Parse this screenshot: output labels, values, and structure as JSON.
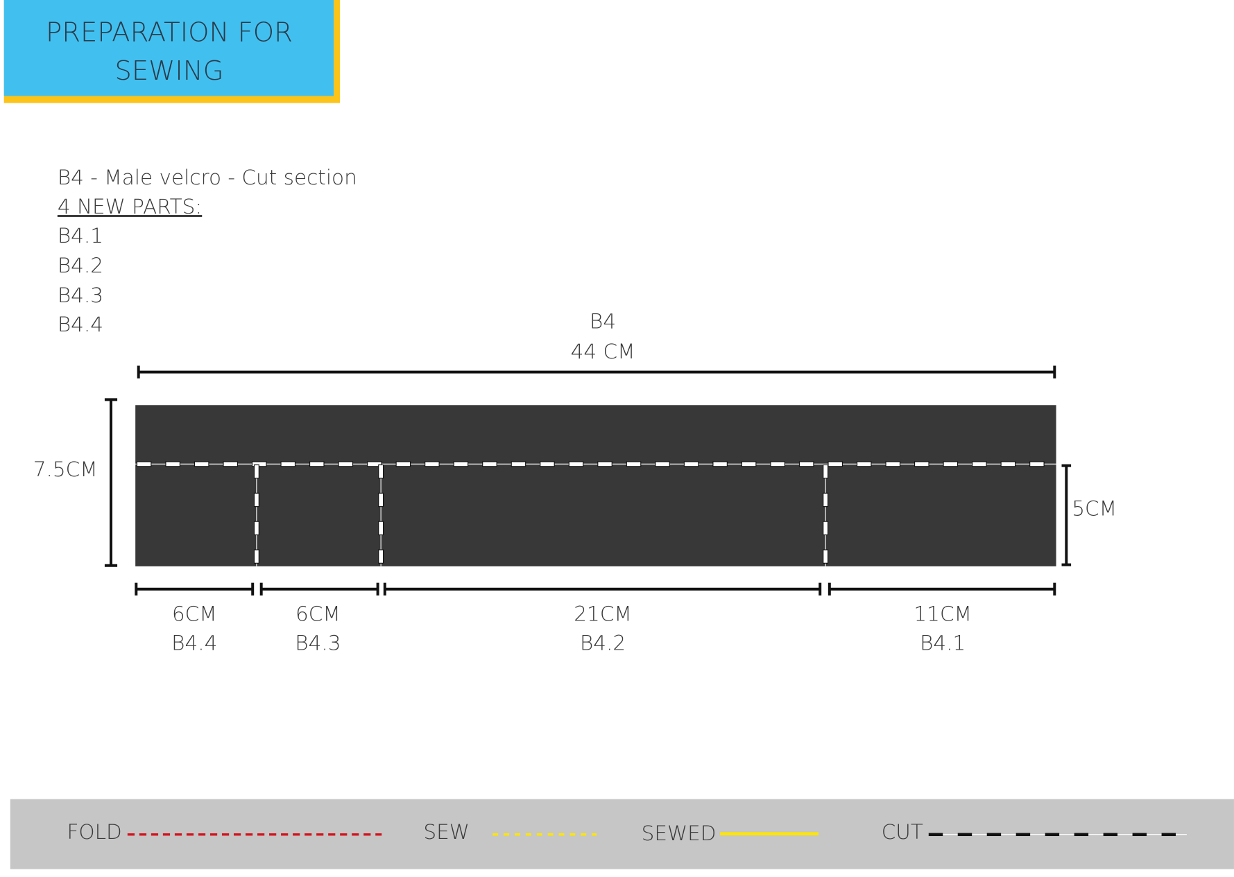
{
  "header": {
    "title_lines": [
      "PREPARATION FOR",
      "SEWING"
    ]
  },
  "info": {
    "title": "B4 - Male velcro  - Cut section",
    "subtitle": "4  NEW PARTS:",
    "parts": [
      "B4.1",
      "B4.2",
      "B4.3",
      "B4.4"
    ]
  },
  "diagram": {
    "top_name": "B4",
    "top_length": "44 CM",
    "height_label": "7.5CM",
    "sub_height_label": "5CM",
    "segments": [
      {
        "length": "6CM",
        "name": "B4.4"
      },
      {
        "length": "6CM",
        "name": "B4.3"
      },
      {
        "length": "21CM",
        "name": "B4.2"
      },
      {
        "length": "11CM",
        "name": "B4.1"
      }
    ]
  },
  "legend": {
    "items": [
      "FOLD",
      "SEW",
      "SEWED",
      "CUT"
    ]
  }
}
